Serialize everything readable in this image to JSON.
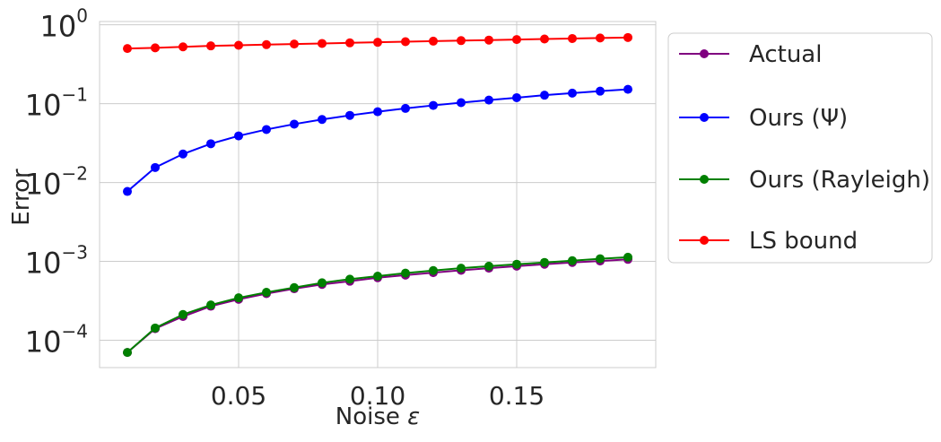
{
  "chart_data": {
    "type": "line",
    "xlabel": "Noise",
    "xlabel_symbol": "ε",
    "ylabel": "Error",
    "yscale": "log",
    "xlim": [
      0.0,
      0.2
    ],
    "ylim": [
      4.5e-05,
      1.1
    ],
    "x_ticks": [
      0.05,
      0.1,
      0.15
    ],
    "x_tick_labels": [
      "0.05",
      "0.10",
      "0.15"
    ],
    "y_ticks": [
      0.0001,
      0.001,
      0.01,
      0.1,
      1
    ],
    "y_tick_labels": [
      {
        "base": "10",
        "exp": "−4"
      },
      {
        "base": "10",
        "exp": "−3"
      },
      {
        "base": "10",
        "exp": "−2"
      },
      {
        "base": "10",
        "exp": "−1"
      },
      {
        "base": "10",
        "exp": "0"
      }
    ],
    "grid": true,
    "legend_position": "outside-right",
    "x": [
      0.01,
      0.02,
      0.03,
      0.04,
      0.05,
      0.06,
      0.07,
      0.08,
      0.09,
      0.1,
      0.11,
      0.12,
      0.13,
      0.14,
      0.15,
      0.16,
      0.17,
      0.18,
      0.19
    ],
    "series": [
      {
        "name": "Actual",
        "color": "#800080",
        "values": [
          7e-05,
          0.00014,
          0.0002,
          0.00027,
          0.00033,
          0.00039,
          0.00045,
          0.00051,
          0.00056,
          0.00062,
          0.00067,
          0.00072,
          0.00077,
          0.00082,
          0.00087,
          0.00092,
          0.00097,
          0.00101,
          0.00106
        ]
      },
      {
        "name": "Ours (Ψ)",
        "color": "#0000ff",
        "values": [
          0.0077,
          0.0155,
          0.023,
          0.031,
          0.039,
          0.047,
          0.055,
          0.063,
          0.071,
          0.079,
          0.087,
          0.095,
          0.103,
          0.111,
          0.119,
          0.128,
          0.136,
          0.144,
          0.152
        ]
      },
      {
        "name": "Ours (Rayleigh)",
        "color": "#008000",
        "values": [
          7e-05,
          0.000143,
          0.000212,
          0.00028,
          0.000345,
          0.000405,
          0.000465,
          0.000535,
          0.000595,
          0.00065,
          0.00071,
          0.000765,
          0.00082,
          0.00087,
          0.00092,
          0.00097,
          0.00102,
          0.00108,
          0.00113
        ]
      },
      {
        "name": "LS bound",
        "color": "#ff0000",
        "values": [
          0.5,
          0.51,
          0.525,
          0.54,
          0.55,
          0.56,
          0.57,
          0.58,
          0.59,
          0.6,
          0.61,
          0.62,
          0.63,
          0.64,
          0.65,
          0.66,
          0.67,
          0.68,
          0.69
        ]
      }
    ]
  }
}
